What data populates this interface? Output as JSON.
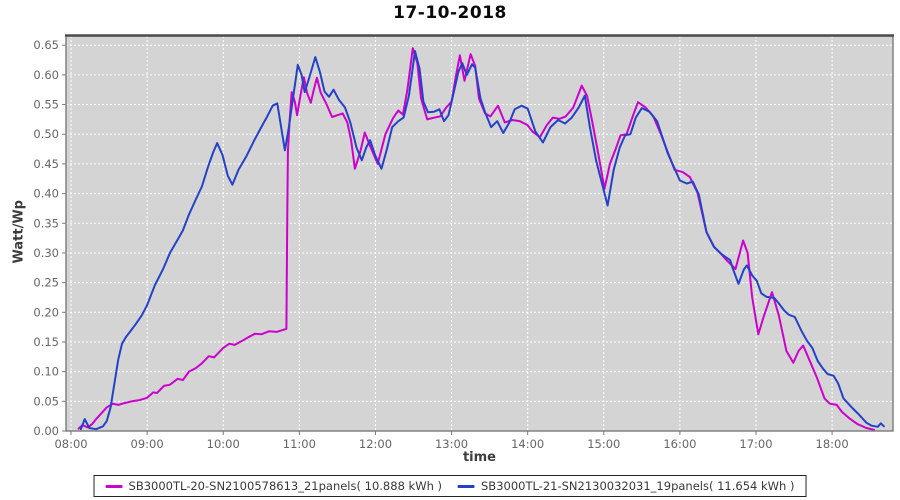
{
  "chart_data": {
    "type": "line",
    "title": "17-10-2018",
    "xlabel": "time",
    "ylabel": "Watt/Wp",
    "x_ticks": [
      "08:00",
      "09:00",
      "10:00",
      "11:00",
      "12:00",
      "13:00",
      "14:00",
      "15:00",
      "16:00",
      "17:00",
      "18:00"
    ],
    "y_ticks": [
      "0.00",
      "0.05",
      "0.10",
      "0.15",
      "0.20",
      "0.25",
      "0.30",
      "0.35",
      "0.40",
      "0.45",
      "0.50",
      "0.55",
      "0.60",
      "0.65"
    ],
    "ylim": [
      0,
      0.6655
    ],
    "xlim_hours": [
      7.934,
      18.8
    ],
    "grid": "on",
    "grid_style": "white dashed on gray plot background",
    "legend_position": "bottom-center",
    "colors": {
      "plot_background": "#d4d4d4",
      "gridline": "#ffffff",
      "plot_border": "#7a7a7a",
      "plot_border_top": "#4d4d4d",
      "tick_label": "#666666",
      "axis_title": "#3d3d3d",
      "legend_border": "#222222"
    },
    "series": [
      {
        "name": "SB3000TL-20-SN2100578613_21panels( 10.888 kWh )",
        "energy_kwh": "10.888",
        "color": "#cc00cc",
        "points": [
          [
            8.1,
            0.004
          ],
          [
            8.15,
            0.01
          ],
          [
            8.22,
            0.006
          ],
          [
            8.28,
            0.012
          ],
          [
            8.33,
            0.02
          ],
          [
            8.4,
            0.03
          ],
          [
            8.47,
            0.04
          ],
          [
            8.55,
            0.046
          ],
          [
            8.62,
            0.044
          ],
          [
            8.7,
            0.047
          ],
          [
            8.8,
            0.05
          ],
          [
            8.9,
            0.052
          ],
          [
            9.0,
            0.056
          ],
          [
            9.08,
            0.065
          ],
          [
            9.13,
            0.064
          ],
          [
            9.22,
            0.076
          ],
          [
            9.3,
            0.078
          ],
          [
            9.4,
            0.088
          ],
          [
            9.47,
            0.086
          ],
          [
            9.55,
            0.1
          ],
          [
            9.64,
            0.106
          ],
          [
            9.72,
            0.114
          ],
          [
            9.81,
            0.126
          ],
          [
            9.88,
            0.124
          ],
          [
            10.0,
            0.14
          ],
          [
            10.08,
            0.147
          ],
          [
            10.15,
            0.145
          ],
          [
            10.25,
            0.152
          ],
          [
            10.33,
            0.158
          ],
          [
            10.42,
            0.164
          ],
          [
            10.5,
            0.163
          ],
          [
            10.6,
            0.168
          ],
          [
            10.7,
            0.167
          ],
          [
            10.78,
            0.17
          ],
          [
            10.83,
            0.172
          ],
          [
            10.84,
            0.35
          ],
          [
            10.85,
            0.47
          ],
          [
            10.87,
            0.52
          ],
          [
            10.9,
            0.571
          ],
          [
            10.94,
            0.555
          ],
          [
            10.97,
            0.532
          ],
          [
            11.02,
            0.57
          ],
          [
            11.06,
            0.596
          ],
          [
            11.1,
            0.57
          ],
          [
            11.15,
            0.553
          ],
          [
            11.19,
            0.575
          ],
          [
            11.23,
            0.595
          ],
          [
            11.28,
            0.57
          ],
          [
            11.36,
            0.55
          ],
          [
            11.43,
            0.529
          ],
          [
            11.5,
            0.532
          ],
          [
            11.57,
            0.535
          ],
          [
            11.63,
            0.52
          ],
          [
            11.68,
            0.49
          ],
          [
            11.73,
            0.442
          ],
          [
            11.8,
            0.47
          ],
          [
            11.86,
            0.503
          ],
          [
            11.93,
            0.48
          ],
          [
            12.03,
            0.45
          ],
          [
            12.13,
            0.5
          ],
          [
            12.23,
            0.527
          ],
          [
            12.3,
            0.54
          ],
          [
            12.36,
            0.533
          ],
          [
            12.42,
            0.575
          ],
          [
            12.49,
            0.645
          ],
          [
            12.55,
            0.62
          ],
          [
            12.6,
            0.56
          ],
          [
            12.68,
            0.525
          ],
          [
            12.77,
            0.528
          ],
          [
            12.85,
            0.53
          ],
          [
            12.93,
            0.545
          ],
          [
            13.0,
            0.555
          ],
          [
            13.06,
            0.6
          ],
          [
            13.11,
            0.633
          ],
          [
            13.17,
            0.59
          ],
          [
            13.25,
            0.635
          ],
          [
            13.31,
            0.615
          ],
          [
            13.36,
            0.56
          ],
          [
            13.44,
            0.535
          ],
          [
            13.51,
            0.53
          ],
          [
            13.61,
            0.548
          ],
          [
            13.7,
            0.52
          ],
          [
            13.8,
            0.524
          ],
          [
            13.9,
            0.522
          ],
          [
            14.0,
            0.515
          ],
          [
            14.06,
            0.505
          ],
          [
            14.16,
            0.495
          ],
          [
            14.25,
            0.515
          ],
          [
            14.33,
            0.528
          ],
          [
            14.42,
            0.526
          ],
          [
            14.5,
            0.53
          ],
          [
            14.6,
            0.545
          ],
          [
            14.71,
            0.582
          ],
          [
            14.78,
            0.565
          ],
          [
            14.85,
            0.52
          ],
          [
            14.93,
            0.465
          ],
          [
            15.01,
            0.408
          ],
          [
            15.08,
            0.45
          ],
          [
            15.15,
            0.473
          ],
          [
            15.22,
            0.498
          ],
          [
            15.3,
            0.5
          ],
          [
            15.38,
            0.53
          ],
          [
            15.45,
            0.554
          ],
          [
            15.55,
            0.545
          ],
          [
            15.65,
            0.53
          ],
          [
            15.75,
            0.5
          ],
          [
            15.84,
            0.47
          ],
          [
            15.93,
            0.44
          ],
          [
            16.04,
            0.436
          ],
          [
            16.13,
            0.428
          ],
          [
            16.23,
            0.402
          ],
          [
            16.35,
            0.335
          ],
          [
            16.45,
            0.31
          ],
          [
            16.53,
            0.3
          ],
          [
            16.62,
            0.287
          ],
          [
            16.73,
            0.273
          ],
          [
            16.83,
            0.321
          ],
          [
            16.89,
            0.3
          ],
          [
            16.95,
            0.225
          ],
          [
            17.03,
            0.163
          ],
          [
            17.1,
            0.192
          ],
          [
            17.21,
            0.234
          ],
          [
            17.3,
            0.195
          ],
          [
            17.4,
            0.135
          ],
          [
            17.49,
            0.115
          ],
          [
            17.56,
            0.135
          ],
          [
            17.62,
            0.144
          ],
          [
            17.7,
            0.12
          ],
          [
            17.8,
            0.09
          ],
          [
            17.9,
            0.055
          ],
          [
            17.97,
            0.046
          ],
          [
            18.06,
            0.044
          ],
          [
            18.13,
            0.032
          ],
          [
            18.22,
            0.022
          ],
          [
            18.33,
            0.012
          ],
          [
            18.45,
            0.005
          ],
          [
            18.55,
            0.002
          ]
        ]
      },
      {
        "name": "SB3000TL-21-SN2130032031_19panels( 11.654 kWh )",
        "energy_kwh": "11.654",
        "color": "#2442c8",
        "points": [
          [
            8.13,
            0.003
          ],
          [
            8.18,
            0.02
          ],
          [
            8.24,
            0.005
          ],
          [
            8.33,
            0.003
          ],
          [
            8.42,
            0.008
          ],
          [
            8.47,
            0.017
          ],
          [
            8.52,
            0.04
          ],
          [
            8.57,
            0.08
          ],
          [
            8.62,
            0.12
          ],
          [
            8.67,
            0.147
          ],
          [
            8.72,
            0.158
          ],
          [
            8.78,
            0.168
          ],
          [
            8.85,
            0.18
          ],
          [
            8.93,
            0.195
          ],
          [
            9.0,
            0.212
          ],
          [
            9.1,
            0.245
          ],
          [
            9.21,
            0.273
          ],
          [
            9.3,
            0.3
          ],
          [
            9.39,
            0.32
          ],
          [
            9.47,
            0.338
          ],
          [
            9.55,
            0.365
          ],
          [
            9.64,
            0.39
          ],
          [
            9.72,
            0.412
          ],
          [
            9.8,
            0.445
          ],
          [
            9.87,
            0.47
          ],
          [
            9.92,
            0.485
          ],
          [
            9.99,
            0.465
          ],
          [
            10.06,
            0.43
          ],
          [
            10.12,
            0.415
          ],
          [
            10.2,
            0.44
          ],
          [
            10.3,
            0.462
          ],
          [
            10.4,
            0.488
          ],
          [
            10.5,
            0.512
          ],
          [
            10.57,
            0.528
          ],
          [
            10.65,
            0.548
          ],
          [
            10.71,
            0.552
          ],
          [
            10.77,
            0.505
          ],
          [
            10.81,
            0.473
          ],
          [
            10.86,
            0.51
          ],
          [
            10.91,
            0.555
          ],
          [
            10.98,
            0.617
          ],
          [
            11.03,
            0.6
          ],
          [
            11.07,
            0.571
          ],
          [
            11.13,
            0.595
          ],
          [
            11.21,
            0.63
          ],
          [
            11.27,
            0.605
          ],
          [
            11.33,
            0.572
          ],
          [
            11.39,
            0.563
          ],
          [
            11.45,
            0.575
          ],
          [
            11.52,
            0.558
          ],
          [
            11.6,
            0.545
          ],
          [
            11.67,
            0.52
          ],
          [
            11.75,
            0.478
          ],
          [
            11.82,
            0.456
          ],
          [
            11.88,
            0.478
          ],
          [
            11.93,
            0.49
          ],
          [
            12.0,
            0.463
          ],
          [
            12.08,
            0.442
          ],
          [
            12.15,
            0.475
          ],
          [
            12.22,
            0.512
          ],
          [
            12.3,
            0.522
          ],
          [
            12.37,
            0.528
          ],
          [
            12.44,
            0.565
          ],
          [
            12.52,
            0.64
          ],
          [
            12.58,
            0.61
          ],
          [
            12.63,
            0.555
          ],
          [
            12.69,
            0.537
          ],
          [
            12.77,
            0.538
          ],
          [
            12.84,
            0.542
          ],
          [
            12.9,
            0.522
          ],
          [
            12.96,
            0.532
          ],
          [
            13.02,
            0.566
          ],
          [
            13.09,
            0.605
          ],
          [
            13.14,
            0.62
          ],
          [
            13.2,
            0.6
          ],
          [
            13.27,
            0.618
          ],
          [
            13.31,
            0.612
          ],
          [
            13.38,
            0.56
          ],
          [
            13.44,
            0.537
          ],
          [
            13.52,
            0.512
          ],
          [
            13.6,
            0.522
          ],
          [
            13.68,
            0.502
          ],
          [
            13.76,
            0.52
          ],
          [
            13.83,
            0.542
          ],
          [
            13.92,
            0.548
          ],
          [
            14.0,
            0.543
          ],
          [
            14.1,
            0.505
          ],
          [
            14.2,
            0.486
          ],
          [
            14.3,
            0.512
          ],
          [
            14.4,
            0.524
          ],
          [
            14.49,
            0.518
          ],
          [
            14.58,
            0.528
          ],
          [
            14.67,
            0.545
          ],
          [
            14.75,
            0.565
          ],
          [
            14.82,
            0.51
          ],
          [
            14.9,
            0.455
          ],
          [
            15.05,
            0.38
          ],
          [
            15.13,
            0.44
          ],
          [
            15.21,
            0.478
          ],
          [
            15.28,
            0.498
          ],
          [
            15.35,
            0.5
          ],
          [
            15.42,
            0.528
          ],
          [
            15.5,
            0.544
          ],
          [
            15.6,
            0.538
          ],
          [
            15.7,
            0.522
          ],
          [
            15.84,
            0.468
          ],
          [
            16.0,
            0.422
          ],
          [
            16.09,
            0.417
          ],
          [
            16.17,
            0.42
          ],
          [
            16.25,
            0.398
          ],
          [
            16.35,
            0.335
          ],
          [
            16.45,
            0.31
          ],
          [
            16.53,
            0.3
          ],
          [
            16.58,
            0.295
          ],
          [
            16.66,
            0.288
          ],
          [
            16.7,
            0.272
          ],
          [
            16.77,
            0.248
          ],
          [
            16.84,
            0.272
          ],
          [
            16.88,
            0.279
          ],
          [
            16.95,
            0.262
          ],
          [
            17.01,
            0.253
          ],
          [
            17.07,
            0.232
          ],
          [
            17.14,
            0.226
          ],
          [
            17.24,
            0.224
          ],
          [
            17.3,
            0.215
          ],
          [
            17.37,
            0.203
          ],
          [
            17.43,
            0.196
          ],
          [
            17.51,
            0.192
          ],
          [
            17.6,
            0.168
          ],
          [
            17.67,
            0.152
          ],
          [
            17.74,
            0.14
          ],
          [
            17.81,
            0.118
          ],
          [
            17.88,
            0.105
          ],
          [
            17.94,
            0.096
          ],
          [
            18.02,
            0.093
          ],
          [
            18.08,
            0.08
          ],
          [
            18.15,
            0.055
          ],
          [
            18.27,
            0.038
          ],
          [
            18.35,
            0.028
          ],
          [
            18.45,
            0.014
          ],
          [
            18.52,
            0.009
          ],
          [
            18.6,
            0.007
          ],
          [
            18.64,
            0.013
          ],
          [
            18.68,
            0.008
          ]
        ]
      }
    ]
  }
}
